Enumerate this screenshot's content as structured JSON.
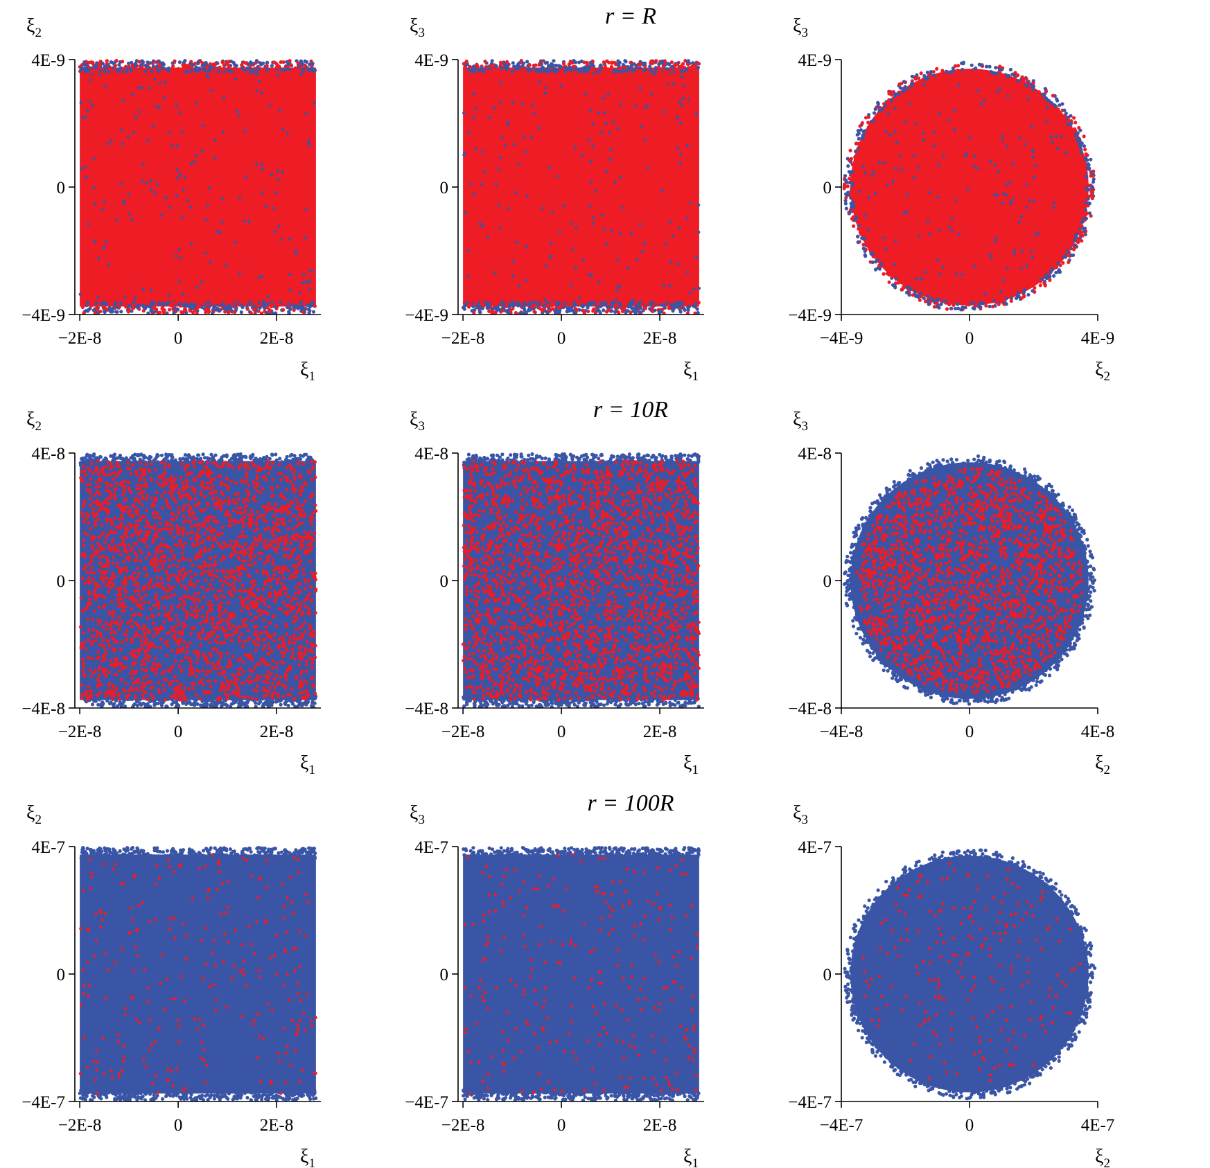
{
  "figure": {
    "row_titles": [
      "r = R",
      "r = 10R",
      "r = 100R"
    ]
  },
  "legend_colors": {
    "series_a": "#3a55a6",
    "series_b": "#ee1c25"
  },
  "chart_data": [
    {
      "type": "scatter",
      "row": 0,
      "title": "r = R",
      "xlabel": "ξ1",
      "ylabel": "ξ2",
      "xlim": [
        -2.1e-08,
        2.9e-08
      ],
      "ylim": [
        -4e-09,
        4e-09
      ],
      "xticks": [
        "−2E-8",
        "0",
        "2E-8"
      ],
      "yticks": [
        "4E-9",
        "0",
        "−4E-9"
      ],
      "shape": "band",
      "band_x": [
        -2e-08,
        2.8e-08
      ],
      "band_y": [
        -3.75e-09,
        3.75e-09
      ],
      "dominant": "red",
      "series": [
        {
          "color": "#3a55a6"
        },
        {
          "color": "#ee1c25"
        }
      ]
    },
    {
      "type": "scatter",
      "row": 0,
      "title": "r = R",
      "xlabel": "ξ1",
      "ylabel": "ξ3",
      "xlim": [
        -2.1e-08,
        2.9e-08
      ],
      "ylim": [
        -4e-09,
        4e-09
      ],
      "xticks": [
        "−2E-8",
        "0",
        "2E-8"
      ],
      "yticks": [
        "4E-9",
        "0",
        "−4E-9"
      ],
      "shape": "band",
      "band_x": [
        -2e-08,
        2.8e-08
      ],
      "band_y": [
        -3.75e-09,
        3.75e-09
      ],
      "dominant": "red",
      "series": [
        {
          "color": "#3a55a6"
        },
        {
          "color": "#ee1c25"
        }
      ]
    },
    {
      "type": "scatter",
      "row": 0,
      "title": "r = R",
      "xlabel": "ξ2",
      "ylabel": "ξ3",
      "xlim": [
        -4e-09,
        4e-09
      ],
      "ylim": [
        -4e-09,
        4e-09
      ],
      "xticks": [
        "−4E-9",
        "0",
        "4E-9"
      ],
      "yticks": [
        "4E-9",
        "0",
        "−4E-9"
      ],
      "shape": "disk",
      "radius": 3.8e-09,
      "dominant": "red",
      "series": [
        {
          "color": "#3a55a6"
        },
        {
          "color": "#ee1c25"
        }
      ]
    },
    {
      "type": "scatter",
      "row": 1,
      "title": "r = 10R",
      "xlabel": "ξ1",
      "ylabel": "ξ2",
      "xlim": [
        -2.1e-08,
        2.9e-08
      ],
      "ylim": [
        -4e-08,
        4e-08
      ],
      "xticks": [
        "−2E-8",
        "0",
        "2E-8"
      ],
      "yticks": [
        "4E-8",
        "0",
        "−4E-8"
      ],
      "shape": "band",
      "band_x": [
        -2e-08,
        2.8e-08
      ],
      "band_y": [
        -3.75e-08,
        3.75e-08
      ],
      "dominant": "mixed",
      "series": [
        {
          "color": "#3a55a6"
        },
        {
          "color": "#ee1c25"
        }
      ]
    },
    {
      "type": "scatter",
      "row": 1,
      "title": "r = 10R",
      "xlabel": "ξ1",
      "ylabel": "ξ3",
      "xlim": [
        -2.1e-08,
        2.9e-08
      ],
      "ylim": [
        -4e-08,
        4e-08
      ],
      "xticks": [
        "−2E-8",
        "0",
        "2E-8"
      ],
      "yticks": [
        "4E-8",
        "0",
        "−4E-8"
      ],
      "shape": "band",
      "band_x": [
        -2e-08,
        2.8e-08
      ],
      "band_y": [
        -3.75e-08,
        3.75e-08
      ],
      "dominant": "mixed",
      "series": [
        {
          "color": "#3a55a6"
        },
        {
          "color": "#ee1c25"
        }
      ]
    },
    {
      "type": "scatter",
      "row": 1,
      "title": "r = 10R",
      "xlabel": "ξ2",
      "ylabel": "ξ3",
      "xlim": [
        -4e-08,
        4e-08
      ],
      "ylim": [
        -4e-08,
        4e-08
      ],
      "xticks": [
        "−4E-8",
        "0",
        "4E-8"
      ],
      "yticks": [
        "4E-8",
        "0",
        "−4E-8"
      ],
      "shape": "disk",
      "radius": 3.8e-08,
      "dominant": "mixed",
      "series": [
        {
          "color": "#3a55a6"
        },
        {
          "color": "#ee1c25"
        }
      ]
    },
    {
      "type": "scatter",
      "row": 2,
      "title": "r = 100R",
      "xlabel": "ξ1",
      "ylabel": "ξ2",
      "xlim": [
        -2.1e-08,
        2.9e-08
      ],
      "ylim": [
        -4e-07,
        4e-07
      ],
      "xticks": [
        "−2E-8",
        "0",
        "2E-8"
      ],
      "yticks": [
        "4E-7",
        "0",
        "−4E-7"
      ],
      "shape": "band",
      "band_x": [
        -2e-08,
        2.8e-08
      ],
      "band_y": [
        -3.75e-07,
        3.75e-07
      ],
      "dominant": "blue",
      "series": [
        {
          "color": "#3a55a6"
        },
        {
          "color": "#ee1c25"
        }
      ]
    },
    {
      "type": "scatter",
      "row": 2,
      "title": "r = 100R",
      "xlabel": "ξ1",
      "ylabel": "ξ3",
      "xlim": [
        -2.1e-08,
        2.9e-08
      ],
      "ylim": [
        -4e-07,
        4e-07
      ],
      "xticks": [
        "−2E-8",
        "0",
        "2E-8"
      ],
      "yticks": [
        "4E-7",
        "0",
        "−4E-7"
      ],
      "shape": "band",
      "band_x": [
        -2e-08,
        2.8e-08
      ],
      "band_y": [
        -3.75e-07,
        3.75e-07
      ],
      "dominant": "blue",
      "series": [
        {
          "color": "#3a55a6"
        },
        {
          "color": "#ee1c25"
        }
      ]
    },
    {
      "type": "scatter",
      "row": 2,
      "title": "r = 100R",
      "xlabel": "ξ2",
      "ylabel": "ξ3",
      "xlim": [
        -4e-07,
        4e-07
      ],
      "ylim": [
        -4e-07,
        4e-07
      ],
      "xticks": [
        "−4E-7",
        "0",
        "4E-7"
      ],
      "yticks": [
        "4E-7",
        "0",
        "−4E-7"
      ],
      "shape": "disk",
      "radius": 3.8e-07,
      "dominant": "blue",
      "series": [
        {
          "color": "#3a55a6"
        },
        {
          "color": "#ee1c25"
        }
      ]
    }
  ]
}
